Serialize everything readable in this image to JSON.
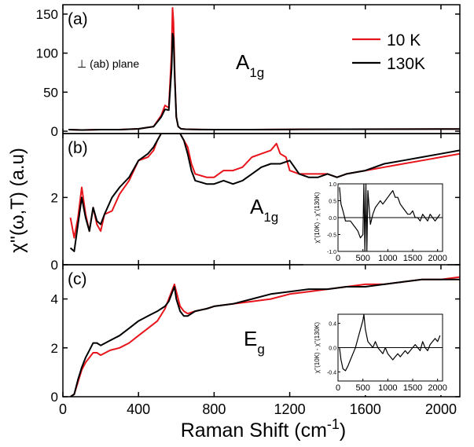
{
  "chart_data": {
    "type": "line",
    "xlabel": "Raman Shift (cm",
    "xlabel_sup": "-1",
    "xlabel_close": ")",
    "ylabel": "χ''(ω,T) (a.u)",
    "xlim": [
      0,
      2100
    ],
    "xticks": [
      0,
      400,
      800,
      1200,
      1600,
      2000
    ],
    "legend": {
      "placement": "top-right",
      "entries": [
        {
          "name": "10 K",
          "color": "#e8141b"
        },
        {
          "name": "130K",
          "color": "#000000"
        }
      ]
    },
    "series_colors": {
      "10 K": "#e8141b",
      "130K": "#000000"
    },
    "panels": [
      {
        "id": "a",
        "label": "(a)",
        "mode_main": "A",
        "mode_sub": "1g",
        "note": "⊥ (ab) plane",
        "ylim": [
          -3,
          162
        ],
        "yticks": [
          0,
          50,
          100,
          150
        ],
        "series": [
          {
            "name": "10 K",
            "x": [
              30,
              100,
              200,
              300,
              400,
              480,
              520,
              540,
              560,
              575,
              580,
              585,
              592,
              600,
              610,
              625,
              650,
              700,
              800,
              1000,
              1200,
              1500,
              1800,
              2000,
              2100
            ],
            "y": [
              2,
              1.5,
              2,
              2,
              3,
              6,
              20,
              33,
              30,
              100,
              158,
              140,
              70,
              18,
              6,
              3,
              2.5,
              2.2,
              2,
              2,
              2.3,
              2.5,
              2.6,
              2.8,
              2.8
            ]
          },
          {
            "name": "130K",
            "x": [
              30,
              100,
              200,
              300,
              400,
              480,
              520,
              540,
              560,
              575,
              580,
              585,
              592,
              600,
              610,
              625,
              650,
              700,
              800,
              1000,
              1200,
              1500,
              1800,
              2000,
              2100
            ],
            "y": [
              2,
              1.5,
              2,
              2,
              3,
              6,
              18,
              28,
              27,
              80,
              125,
              120,
              65,
              18,
              6,
              3,
              2.5,
              2.2,
              2,
              2,
              2.3,
              2.5,
              2.6,
              2.8,
              2.8
            ]
          }
        ]
      },
      {
        "id": "b",
        "label": "(b)",
        "mode_main": "A",
        "mode_sub": "1g",
        "ylim": [
          0,
          3.9
        ],
        "yticks": [
          0,
          2
        ],
        "series": [
          {
            "name": "10 K",
            "x": [
              40,
              60,
              80,
              100,
              120,
              140,
              160,
              180,
              200,
              220,
              260,
              300,
              350,
              400,
              450,
              480,
              500,
              520,
              540,
              560,
              580,
              600,
              620,
              640,
              660,
              680,
              700,
              760,
              800,
              850,
              900,
              950,
              1000,
              1050,
              1100,
              1130,
              1150,
              1180,
              1200,
              1250,
              1300,
              1350,
              1400,
              1450,
              1500,
              1600,
              1700,
              1800,
              1900,
              2000,
              2100
            ],
            "y": [
              1.4,
              0.8,
              1.4,
              2.3,
              1.5,
              1.0,
              1.7,
              1.2,
              1.0,
              1.5,
              1.6,
              2.1,
              2.5,
              3.1,
              3.2,
              3.4,
              3.7,
              3.9,
              3.9,
              3.9,
              3.9,
              3.9,
              3.9,
              3.7,
              3.5,
              3.0,
              2.7,
              2.6,
              2.6,
              2.8,
              2.8,
              2.9,
              3.2,
              3.3,
              3.4,
              3.6,
              3.3,
              3.2,
              2.8,
              2.7,
              2.7,
              2.7,
              2.7,
              2.6,
              2.7,
              2.8,
              2.9,
              3.0,
              3.1,
              3.2,
              3.3
            ]
          },
          {
            "name": "130K",
            "x": [
              40,
              60,
              80,
              100,
              120,
              140,
              160,
              180,
              200,
              220,
              260,
              300,
              350,
              400,
              450,
              480,
              500,
              520,
              540,
              560,
              580,
              600,
              620,
              640,
              660,
              680,
              700,
              760,
              800,
              850,
              900,
              950,
              1000,
              1050,
              1100,
              1150,
              1200,
              1250,
              1300,
              1350,
              1400,
              1450,
              1500,
              1600,
              1700,
              1800,
              1900,
              2000,
              2100
            ],
            "y": [
              0.5,
              0.4,
              1.2,
              2.0,
              1.4,
              1.0,
              1.7,
              1.3,
              1.2,
              1.5,
              2.0,
              2.3,
              2.6,
              3.1,
              3.3,
              3.5,
              3.7,
              3.9,
              3.9,
              3.9,
              3.9,
              3.9,
              3.9,
              3.7,
              3.3,
              2.8,
              2.5,
              2.4,
              2.4,
              2.5,
              2.4,
              2.5,
              2.7,
              2.9,
              3.0,
              3.0,
              3.1,
              2.7,
              2.6,
              2.6,
              2.7,
              2.6,
              2.7,
              2.8,
              3.0,
              3.1,
              3.2,
              3.3,
              3.4
            ]
          }
        ],
        "inset": {
          "ylabel": "χ''(10K) - χ''(130K)",
          "xlim": [
            0,
            2100
          ],
          "ylim": [
            -1.0,
            1.0
          ],
          "xticks": [
            0,
            500,
            1000,
            1500,
            2000
          ],
          "yticks": [
            -1.0,
            -0.5,
            0.0,
            0.5,
            1.0
          ],
          "ytick_labels": [
            "-1.0",
            "-0.5",
            "0.0",
            "0.5",
            "1.0"
          ],
          "series": {
            "x": [
              30,
              60,
              100,
              150,
              200,
              250,
              300,
              350,
              400,
              450,
              500,
              520,
              540,
              560,
              580,
              600,
              650,
              700,
              750,
              800,
              850,
              900,
              950,
              1000,
              1050,
              1100,
              1150,
              1200,
              1250,
              1300,
              1350,
              1400,
              1450,
              1500,
              1550,
              1600,
              1650,
              1700,
              1750,
              1800,
              1850,
              1900,
              1950,
              2000,
              2050
            ],
            "y": [
              0.9,
              0.4,
              0.2,
              -0.1,
              -0.1,
              -0.1,
              -0.2,
              -0.3,
              -0.4,
              -0.6,
              -0.5,
              1.0,
              -1.0,
              1.0,
              -1.0,
              0.8,
              -0.2,
              0.1,
              0.3,
              0.4,
              0.5,
              0.4,
              0.5,
              0.6,
              0.7,
              0.8,
              0.6,
              0.6,
              0.4,
              0.3,
              0.2,
              0.1,
              0.1,
              0.2,
              0.0,
              0.0,
              -0.1,
              0.1,
              0.0,
              -0.1,
              0.1,
              0.0,
              -0.1,
              0.0,
              0.1
            ]
          }
        }
      },
      {
        "id": "c",
        "label": "(c)",
        "mode_main": "E",
        "mode_sub": "g",
        "ylim": [
          0,
          5.4
        ],
        "yticks": [
          0,
          2,
          4
        ],
        "series": [
          {
            "name": "10 K",
            "x": [
              40,
              60,
              80,
              100,
              120,
              140,
              160,
              180,
              200,
              250,
              300,
              350,
              400,
              450,
              500,
              540,
              560,
              580,
              590,
              600,
              620,
              640,
              660,
              700,
              760,
              800,
              900,
              1000,
              1100,
              1200,
              1300,
              1400,
              1500,
              1600,
              1700,
              1800,
              1900,
              2000,
              2100
            ],
            "y": [
              0,
              0.1,
              0.6,
              1.1,
              1.4,
              1.6,
              1.8,
              1.8,
              1.7,
              1.9,
              2.0,
              2.2,
              2.5,
              2.8,
              3.1,
              3.6,
              4.0,
              4.4,
              4.6,
              4.3,
              3.7,
              3.5,
              3.4,
              3.5,
              3.6,
              3.7,
              3.8,
              3.9,
              4.0,
              4.2,
              4.3,
              4.4,
              4.5,
              4.6,
              4.6,
              4.7,
              4.8,
              4.8,
              4.9
            ]
          },
          {
            "name": "130K",
            "x": [
              40,
              60,
              80,
              100,
              120,
              140,
              160,
              180,
              200,
              250,
              300,
              350,
              400,
              450,
              500,
              540,
              560,
              580,
              590,
              600,
              620,
              640,
              660,
              700,
              760,
              800,
              900,
              1000,
              1100,
              1200,
              1300,
              1400,
              1500,
              1600,
              1700,
              1800,
              1900,
              2000,
              2100
            ],
            "y": [
              0,
              0.1,
              0.7,
              1.2,
              1.6,
              1.9,
              2.2,
              2.2,
              2.1,
              2.3,
              2.5,
              2.8,
              3.1,
              3.3,
              3.5,
              3.7,
              3.9,
              4.3,
              4.5,
              4.0,
              3.5,
              3.3,
              3.3,
              3.5,
              3.6,
              3.7,
              3.8,
              4.0,
              4.2,
              4.3,
              4.4,
              4.4,
              4.5,
              4.5,
              4.6,
              4.7,
              4.8,
              4.8,
              4.8
            ]
          }
        ],
        "inset": {
          "ylabel": "χ''(10K) - χ''(130K)",
          "xlim": [
            0,
            2100
          ],
          "ylim": [
            -0.55,
            0.55
          ],
          "xticks": [
            0,
            500,
            1000,
            1500,
            2000
          ],
          "yticks": [
            -0.4,
            0.0,
            0.4
          ],
          "ytick_labels": [
            "-0.4",
            "0.0",
            "0.4"
          ],
          "series": {
            "x": [
              30,
              60,
              100,
              150,
              200,
              250,
              300,
              350,
              400,
              450,
              500,
              520,
              550,
              600,
              650,
              700,
              750,
              800,
              850,
              900,
              950,
              1000,
              1050,
              1100,
              1150,
              1200,
              1250,
              1300,
              1350,
              1400,
              1450,
              1500,
              1550,
              1600,
              1650,
              1700,
              1750,
              1800,
              1850,
              1900,
              1950,
              2000,
              2050
            ],
            "y": [
              0.0,
              -0.2,
              -0.35,
              -0.38,
              -0.3,
              -0.2,
              -0.1,
              0.0,
              0.15,
              0.3,
              0.45,
              0.55,
              0.3,
              0.1,
              0.05,
              0.0,
              0.1,
              0.0,
              -0.05,
              -0.1,
              0.0,
              -0.1,
              -0.15,
              -0.2,
              -0.15,
              -0.1,
              -0.15,
              -0.1,
              -0.05,
              -0.1,
              -0.05,
              0.0,
              0.05,
              0.0,
              -0.05,
              0.1,
              0.0,
              -0.05,
              0.05,
              0.1,
              0.15,
              0.1,
              0.2
            ]
          }
        }
      }
    ]
  }
}
